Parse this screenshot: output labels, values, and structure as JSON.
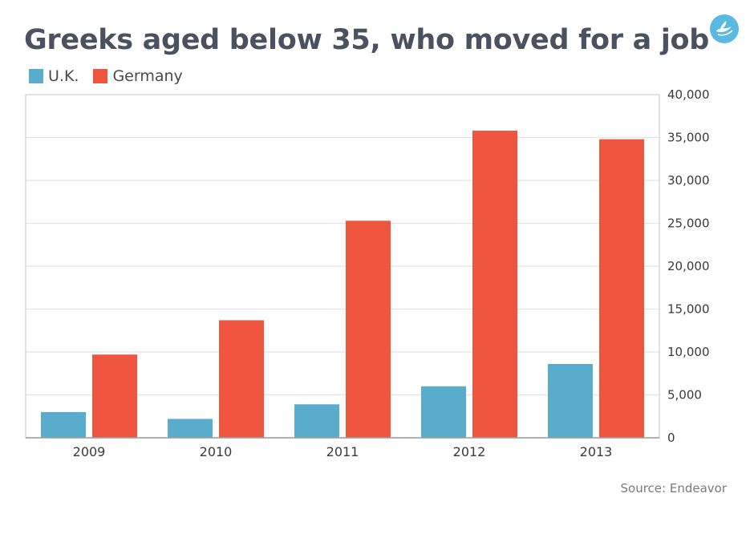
{
  "chart_data": {
    "type": "bar",
    "title": "Greeks aged below 35, who moved for a job",
    "categories": [
      "2009",
      "2010",
      "2011",
      "2012",
      "2013"
    ],
    "series": [
      {
        "name": "U.K.",
        "color": "#5aaccc",
        "values": [
          3000,
          2200,
          3900,
          6000,
          8600
        ]
      },
      {
        "name": "Germany",
        "color": "#f0553f",
        "values": [
          9700,
          13700,
          25300,
          35800,
          34800
        ]
      }
    ],
    "ylim": [
      0,
      40000
    ],
    "yticks": [
      "0",
      "5,000",
      "10,000",
      "15,000",
      "20,000",
      "25,000",
      "30,000",
      "35,000",
      "40,000"
    ],
    "ytick_values": [
      0,
      5000,
      10000,
      15000,
      20000,
      25000,
      30000,
      35000,
      40000
    ],
    "y_axis_side": "right",
    "grid": true,
    "legend_position": "top-left",
    "source": "Source: Endeavor"
  },
  "logo": {
    "name": "bird-logo-icon",
    "color": "#5ab9e0"
  }
}
